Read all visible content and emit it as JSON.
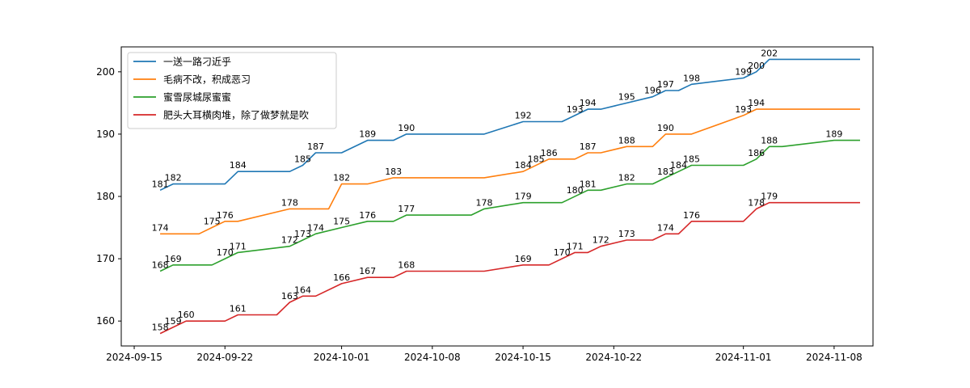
{
  "chart_data": {
    "type": "line",
    "title": "",
    "xlabel": "",
    "ylabel": "",
    "x_axis": {
      "type": "date",
      "range": [
        "2024-09-14",
        "2024-11-11"
      ],
      "ticks": [
        "2024-09-15",
        "2024-09-22",
        "2024-10-01",
        "2024-10-08",
        "2024-10-15",
        "2024-10-22",
        "2024-11-01",
        "2024-11-08"
      ]
    },
    "y_axis": {
      "range": [
        156,
        204
      ],
      "ticks": [
        160,
        170,
        180,
        190,
        200
      ]
    },
    "grid": false,
    "legend_position": "top-left",
    "series": [
      {
        "name": "一送一路刁近乎",
        "color": "#1f77b4",
        "points": [
          [
            "2024-09-17",
            181
          ],
          [
            "2024-09-18",
            182
          ],
          [
            "2024-09-22",
            182
          ],
          [
            "2024-09-23",
            184
          ],
          [
            "2024-09-27",
            184
          ],
          [
            "2024-09-28",
            185
          ],
          [
            "2024-09-29",
            187
          ],
          [
            "2024-10-01",
            187
          ],
          [
            "2024-10-03",
            189
          ],
          [
            "2024-10-05",
            189
          ],
          [
            "2024-10-06",
            190
          ],
          [
            "2024-10-12",
            190
          ],
          [
            "2024-10-15",
            192
          ],
          [
            "2024-10-18",
            192
          ],
          [
            "2024-10-20",
            194
          ],
          [
            "2024-10-21",
            194
          ],
          [
            "2024-10-25",
            196
          ],
          [
            "2024-10-26",
            197
          ],
          [
            "2024-10-27",
            197
          ],
          [
            "2024-10-28",
            198
          ],
          [
            "2024-11-01",
            199
          ],
          [
            "2024-11-02",
            200
          ],
          [
            "2024-11-03",
            202
          ],
          [
            "2024-11-10",
            202
          ]
        ],
        "labels": [
          [
            "2024-09-17",
            181
          ],
          [
            "2024-09-18",
            182
          ],
          [
            "2024-09-23",
            184
          ],
          [
            "2024-09-28",
            185
          ],
          [
            "2024-09-29",
            187
          ],
          [
            "2024-10-03",
            189
          ],
          [
            "2024-10-06",
            190
          ],
          [
            "2024-10-15",
            192
          ],
          [
            "2024-10-19",
            193
          ],
          [
            "2024-10-20",
            194
          ],
          [
            "2024-10-23",
            195
          ],
          [
            "2024-10-25",
            196
          ],
          [
            "2024-10-26",
            197
          ],
          [
            "2024-10-28",
            198
          ],
          [
            "2024-11-01",
            199
          ],
          [
            "2024-11-02",
            200
          ],
          [
            "2024-11-03",
            202
          ]
        ]
      },
      {
        "name": "毛病不改，积成恶习",
        "color": "#ff7f0e",
        "points": [
          [
            "2024-09-17",
            174
          ],
          [
            "2024-09-20",
            174
          ],
          [
            "2024-09-21",
            175
          ],
          [
            "2024-09-22",
            176
          ],
          [
            "2024-09-23",
            176
          ],
          [
            "2024-09-27",
            178
          ],
          [
            "2024-09-30",
            178
          ],
          [
            "2024-10-01",
            182
          ],
          [
            "2024-10-03",
            182
          ],
          [
            "2024-10-05",
            183
          ],
          [
            "2024-10-12",
            183
          ],
          [
            "2024-10-15",
            184
          ],
          [
            "2024-10-17",
            186
          ],
          [
            "2024-10-19",
            186
          ],
          [
            "2024-10-20",
            187
          ],
          [
            "2024-10-21",
            187
          ],
          [
            "2024-10-23",
            188
          ],
          [
            "2024-10-25",
            188
          ],
          [
            "2024-10-26",
            190
          ],
          [
            "2024-10-28",
            190
          ],
          [
            "2024-11-01",
            193
          ],
          [
            "2024-11-02",
            194
          ],
          [
            "2024-11-10",
            194
          ]
        ],
        "labels": [
          [
            "2024-09-17",
            174
          ],
          [
            "2024-09-21",
            175
          ],
          [
            "2024-09-22",
            176
          ],
          [
            "2024-09-27",
            178
          ],
          [
            "2024-10-01",
            182
          ],
          [
            "2024-10-05",
            183
          ],
          [
            "2024-10-15",
            184
          ],
          [
            "2024-10-16",
            185
          ],
          [
            "2024-10-17",
            186
          ],
          [
            "2024-10-20",
            187
          ],
          [
            "2024-10-23",
            188
          ],
          [
            "2024-10-26",
            190
          ],
          [
            "2024-11-01",
            193
          ],
          [
            "2024-11-02",
            194
          ]
        ]
      },
      {
        "name": "蜜雪尿城尿蜜蜜",
        "color": "#2ca02c",
        "points": [
          [
            "2024-09-17",
            168
          ],
          [
            "2024-09-18",
            169
          ],
          [
            "2024-09-21",
            169
          ],
          [
            "2024-09-22",
            170
          ],
          [
            "2024-09-23",
            171
          ],
          [
            "2024-09-27",
            172
          ],
          [
            "2024-09-28",
            173
          ],
          [
            "2024-09-29",
            174
          ],
          [
            "2024-10-01",
            175
          ],
          [
            "2024-10-03",
            176
          ],
          [
            "2024-10-05",
            176
          ],
          [
            "2024-10-06",
            177
          ],
          [
            "2024-10-11",
            177
          ],
          [
            "2024-10-12",
            178
          ],
          [
            "2024-10-15",
            179
          ],
          [
            "2024-10-18",
            179
          ],
          [
            "2024-10-20",
            181
          ],
          [
            "2024-10-21",
            181
          ],
          [
            "2024-10-23",
            182
          ],
          [
            "2024-10-25",
            182
          ],
          [
            "2024-10-26",
            183
          ],
          [
            "2024-10-27",
            184
          ],
          [
            "2024-10-28",
            185
          ],
          [
            "2024-11-01",
            185
          ],
          [
            "2024-11-02",
            186
          ],
          [
            "2024-11-03",
            188
          ],
          [
            "2024-11-04",
            188
          ],
          [
            "2024-11-08",
            189
          ],
          [
            "2024-11-10",
            189
          ]
        ],
        "labels": [
          [
            "2024-09-17",
            168
          ],
          [
            "2024-09-18",
            169
          ],
          [
            "2024-09-22",
            170
          ],
          [
            "2024-09-23",
            171
          ],
          [
            "2024-09-27",
            172
          ],
          [
            "2024-09-28",
            173
          ],
          [
            "2024-09-29",
            174
          ],
          [
            "2024-10-01",
            175
          ],
          [
            "2024-10-03",
            176
          ],
          [
            "2024-10-06",
            177
          ],
          [
            "2024-10-12",
            178
          ],
          [
            "2024-10-15",
            179
          ],
          [
            "2024-10-19",
            180
          ],
          [
            "2024-10-20",
            181
          ],
          [
            "2024-10-23",
            182
          ],
          [
            "2024-10-26",
            183
          ],
          [
            "2024-10-27",
            184
          ],
          [
            "2024-10-28",
            185
          ],
          [
            "2024-11-02",
            186
          ],
          [
            "2024-11-03",
            188
          ],
          [
            "2024-11-08",
            189
          ]
        ]
      },
      {
        "name": "肥头大耳横肉堆，除了做梦就是吹",
        "color": "#d62728",
        "points": [
          [
            "2024-09-17",
            158
          ],
          [
            "2024-09-18",
            159
          ],
          [
            "2024-09-19",
            160
          ],
          [
            "2024-09-22",
            160
          ],
          [
            "2024-09-23",
            161
          ],
          [
            "2024-09-26",
            161
          ],
          [
            "2024-09-27",
            163
          ],
          [
            "2024-09-28",
            164
          ],
          [
            "2024-09-29",
            164
          ],
          [
            "2024-10-01",
            166
          ],
          [
            "2024-10-03",
            167
          ],
          [
            "2024-10-05",
            167
          ],
          [
            "2024-10-06",
            168
          ],
          [
            "2024-10-12",
            168
          ],
          [
            "2024-10-15",
            169
          ],
          [
            "2024-10-17",
            169
          ],
          [
            "2024-10-19",
            171
          ],
          [
            "2024-10-20",
            171
          ],
          [
            "2024-10-21",
            172
          ],
          [
            "2024-10-23",
            173
          ],
          [
            "2024-10-25",
            173
          ],
          [
            "2024-10-26",
            174
          ],
          [
            "2024-10-27",
            174
          ],
          [
            "2024-10-28",
            176
          ],
          [
            "2024-11-01",
            176
          ],
          [
            "2024-11-02",
            178
          ],
          [
            "2024-11-03",
            179
          ],
          [
            "2024-11-10",
            179
          ]
        ],
        "labels": [
          [
            "2024-09-17",
            158
          ],
          [
            "2024-09-18",
            159
          ],
          [
            "2024-09-19",
            160
          ],
          [
            "2024-09-23",
            161
          ],
          [
            "2024-09-27",
            163
          ],
          [
            "2024-09-28",
            164
          ],
          [
            "2024-10-01",
            166
          ],
          [
            "2024-10-03",
            167
          ],
          [
            "2024-10-06",
            168
          ],
          [
            "2024-10-15",
            169
          ],
          [
            "2024-10-18",
            170
          ],
          [
            "2024-10-19",
            171
          ],
          [
            "2024-10-21",
            172
          ],
          [
            "2024-10-23",
            173
          ],
          [
            "2024-10-26",
            174
          ],
          [
            "2024-10-28",
            176
          ],
          [
            "2024-11-02",
            178
          ],
          [
            "2024-11-03",
            179
          ]
        ]
      }
    ]
  }
}
